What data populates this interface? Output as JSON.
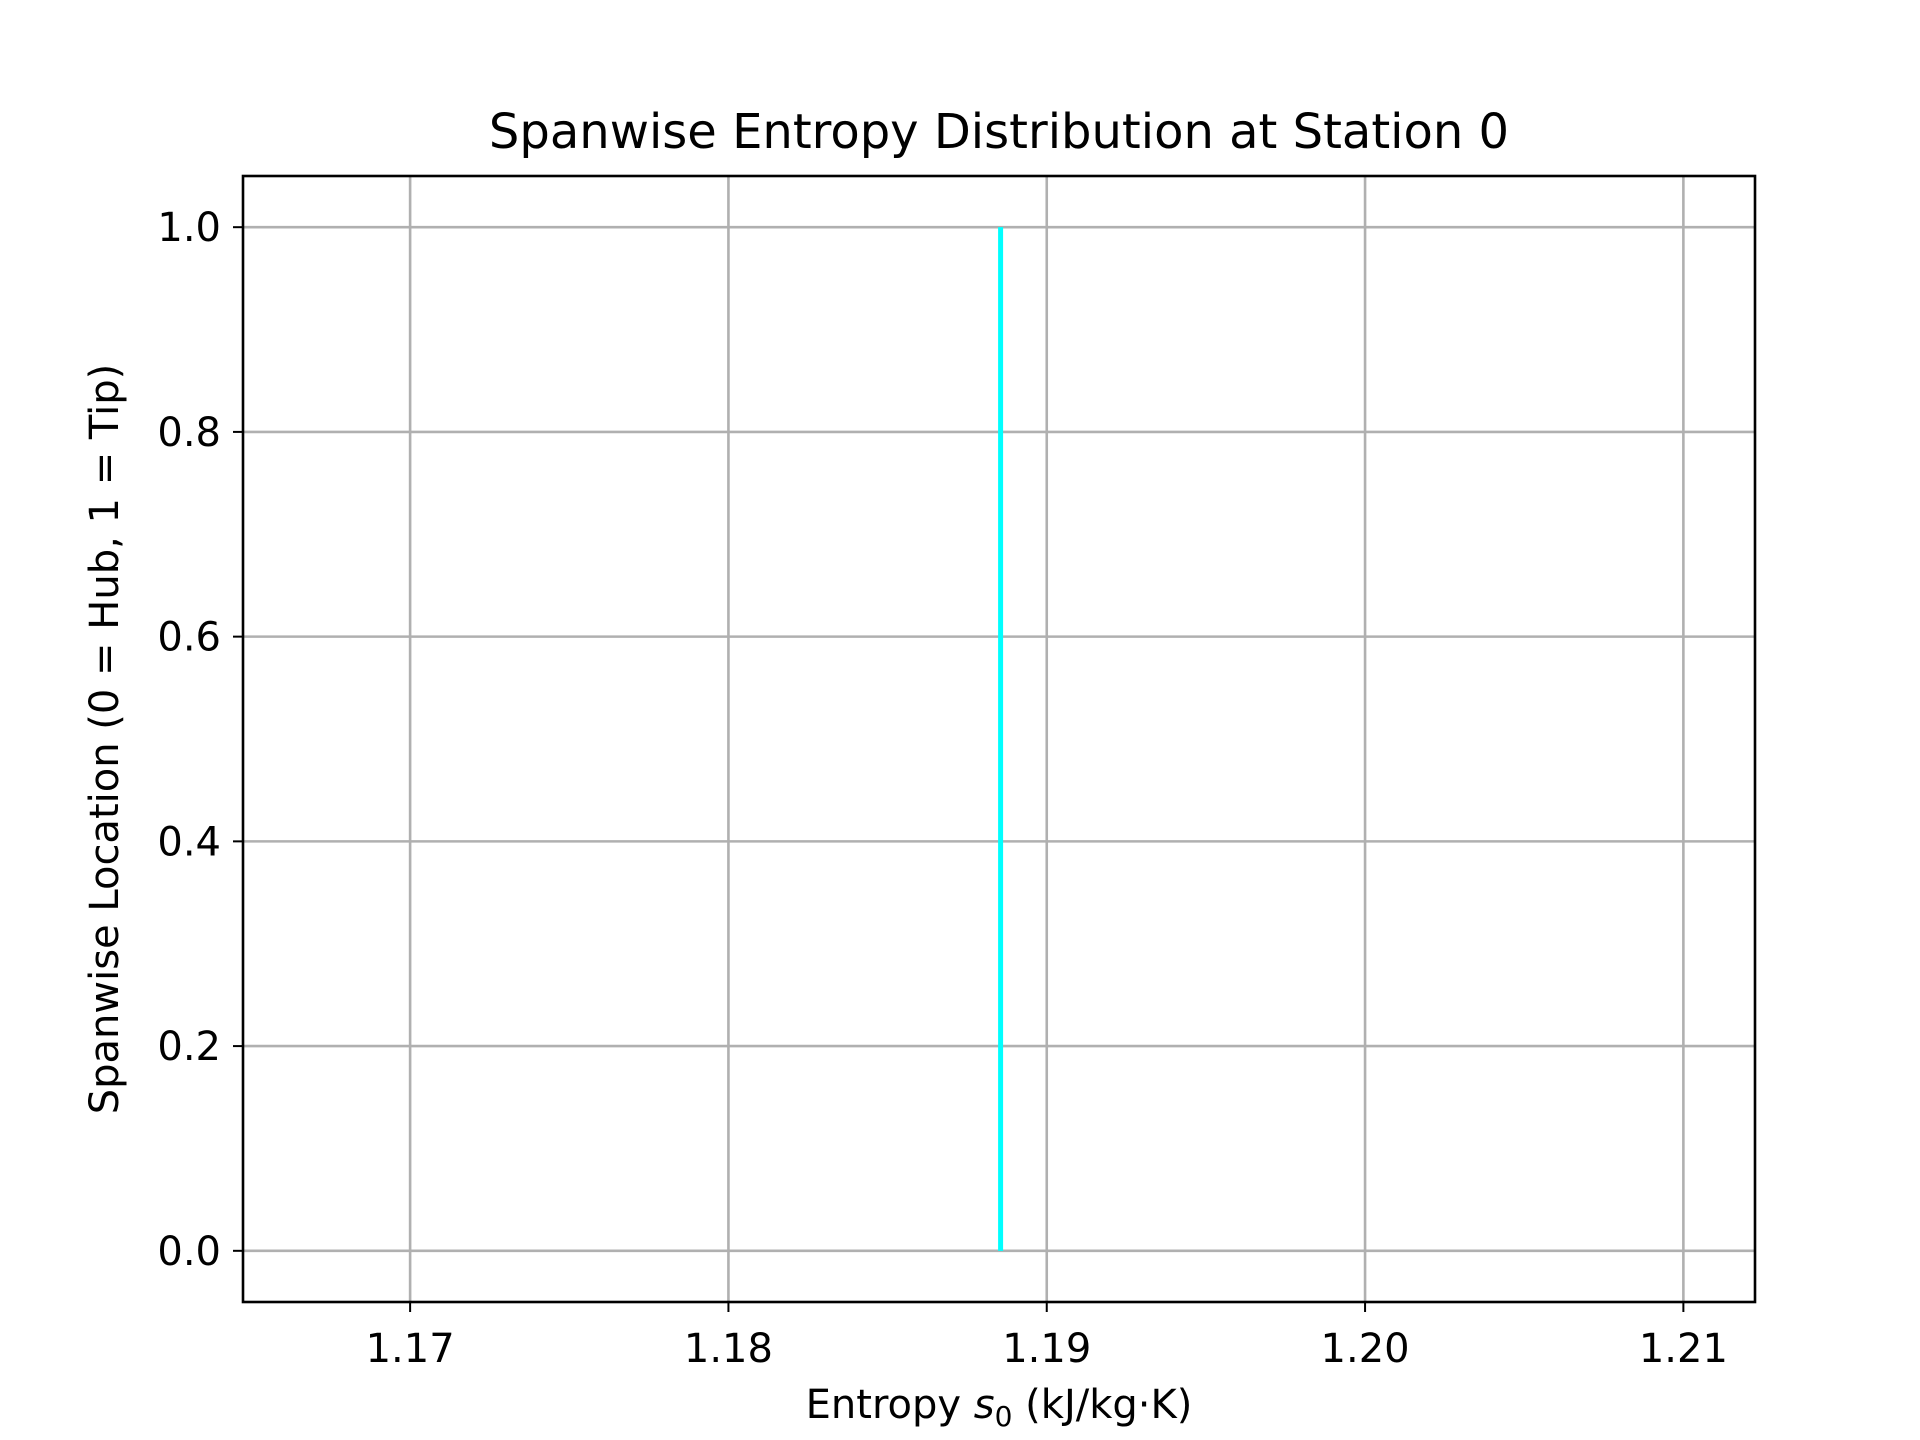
{
  "chart_data": {
    "type": "line",
    "title": "Spanwise Entropy Distribution at Station 0",
    "xlabel": {
      "prefix": "Entropy ",
      "symbol": "s",
      "subscript": "0",
      "suffix": " (kJ/kg·K)"
    },
    "ylabel": "Spanwise Location (0 = Hub, 1 = Tip)",
    "xlim": [
      1.16475,
      1.21225
    ],
    "ylim": [
      -0.05,
      1.05
    ],
    "xticks": [
      1.17,
      1.18,
      1.19,
      1.2,
      1.21
    ],
    "xtick_labels": [
      "1.17",
      "1.18",
      "1.19",
      "1.20",
      "1.21"
    ],
    "yticks": [
      0.0,
      0.2,
      0.4,
      0.6,
      0.8,
      1.0
    ],
    "ytick_labels": [
      "0.0",
      "0.2",
      "0.4",
      "0.6",
      "0.8",
      "1.0"
    ],
    "grid": true,
    "series": [
      {
        "color": "#00ffff",
        "x": [
          1.18855,
          1.18855,
          1.18855,
          1.18855,
          1.18855,
          1.18855
        ],
        "y": [
          0.0,
          0.2,
          0.4,
          0.6,
          0.8,
          1.0
        ]
      }
    ]
  }
}
